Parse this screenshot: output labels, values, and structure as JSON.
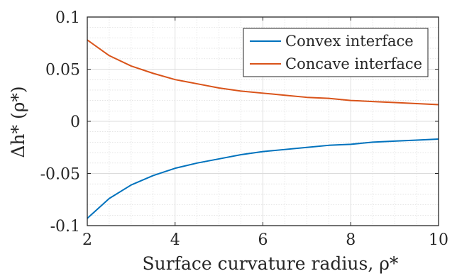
{
  "chart_data": {
    "type": "line",
    "xlabel": "Surface curvature radius, ρ*",
    "ylabel": "Δh* (ρ*)",
    "xlim": [
      2,
      10
    ],
    "ylim": [
      -0.1,
      0.1
    ],
    "x_ticks": [
      2,
      4,
      6,
      8,
      10
    ],
    "x_tick_labels": [
      "2",
      "4",
      "6",
      "8",
      "10"
    ],
    "y_ticks": [
      -0.1,
      -0.05,
      0,
      0.05,
      0.1
    ],
    "y_tick_labels": [
      "-0.1",
      "-0.05",
      "0",
      "0.05",
      "0.1"
    ],
    "minor_grid": true,
    "legend_position": "top-right",
    "x": [
      2,
      2.5,
      3,
      3.5,
      4,
      4.5,
      5,
      5.5,
      6,
      6.5,
      7,
      7.5,
      8,
      8.5,
      9,
      9.5,
      10
    ],
    "series": [
      {
        "name": "Convex interface",
        "color": "#0072BD",
        "values": [
          -0.093,
          -0.074,
          -0.061,
          -0.052,
          -0.045,
          -0.04,
          -0.036,
          -0.032,
          -0.029,
          -0.027,
          -0.025,
          -0.023,
          -0.022,
          -0.02,
          -0.019,
          -0.018,
          -0.017
        ]
      },
      {
        "name": "Concave interface",
        "color": "#D95319",
        "values": [
          0.078,
          0.063,
          0.053,
          0.046,
          0.04,
          0.036,
          0.032,
          0.029,
          0.027,
          0.025,
          0.023,
          0.022,
          0.02,
          0.019,
          0.018,
          0.017,
          0.016
        ]
      }
    ]
  }
}
